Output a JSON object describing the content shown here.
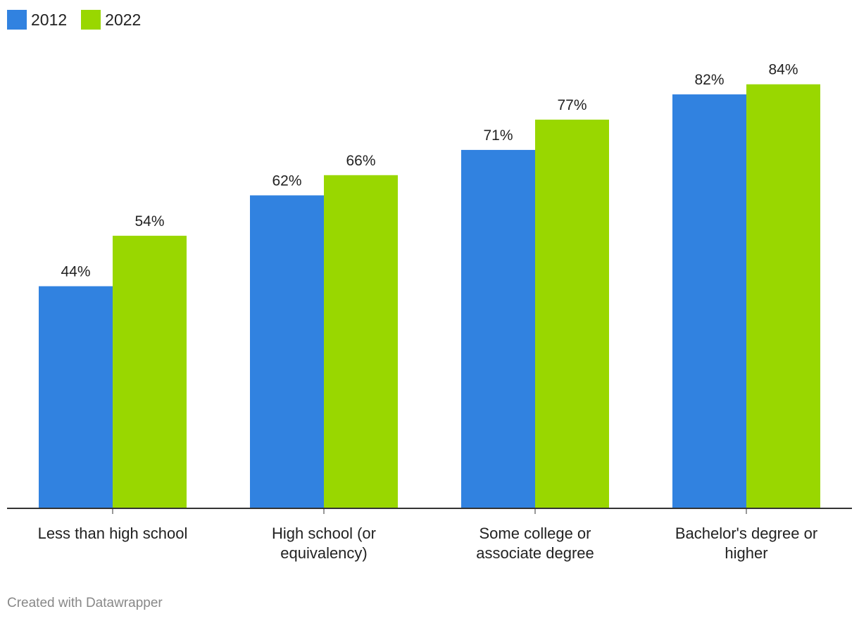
{
  "chart_data": {
    "type": "bar",
    "categories": [
      [
        "Less than high school"
      ],
      [
        "High school (or",
        "equivalency)"
      ],
      [
        "Some college or",
        "associate degree"
      ],
      [
        "Bachelor's degree or",
        "higher"
      ]
    ],
    "series": [
      {
        "name": "2012",
        "color": "#3182e0",
        "values": [
          44,
          62,
          71,
          82
        ],
        "labels": [
          "44%",
          "62%",
          "71%",
          "82%"
        ]
      },
      {
        "name": "2022",
        "color": "#99d700",
        "values": [
          54,
          66,
          77,
          84
        ],
        "labels": [
          "54%",
          "66%",
          "77%",
          "84%"
        ]
      }
    ],
    "ylim": [
      0,
      100
    ],
    "grid": false,
    "legend_position": "top-left"
  },
  "footer": {
    "credit": "Created with Datawrapper"
  }
}
